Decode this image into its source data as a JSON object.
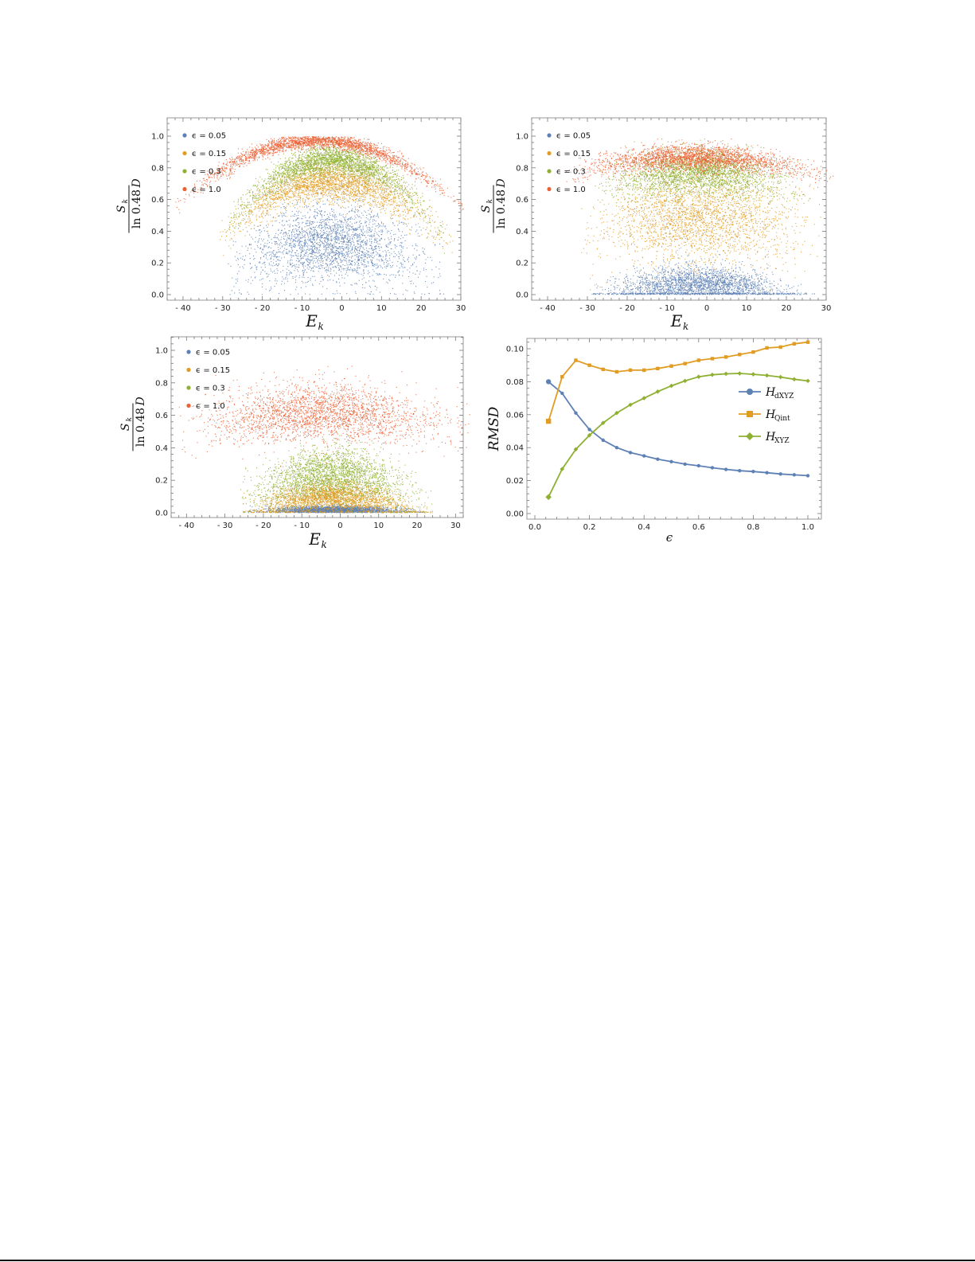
{
  "figure": {
    "panels_count": 4,
    "legend_scatter": [
      "ϵ = 0.05",
      "ϵ = 0.15",
      "ϵ = 0.3",
      "ϵ = 1.0"
    ],
    "legend_lines": [
      "H_dXYZ",
      "H_Qint",
      "H_XYZ"
    ],
    "colors": {
      "blue": "#5E81B5",
      "orange": "#E19C24",
      "green": "#8FB032",
      "red": "#EB6235"
    }
  },
  "chart_data": [
    {
      "id": "top-left",
      "type": "scatter",
      "title": "",
      "xlabel": "E_k",
      "ylabel": "S_k / ln 0.48D",
      "xlim": [
        -44,
        30
      ],
      "ylim": [
        -0.01,
        1.1
      ],
      "xticks": [
        -40,
        -30,
        -20,
        -10,
        0,
        10,
        20,
        30
      ],
      "xtick_labels": [
        "- 40",
        "- 30",
        "- 20",
        "- 10",
        "0",
        "10",
        "20",
        "30"
      ],
      "yticks": [
        0.0,
        0.2,
        0.4,
        0.6,
        0.8,
        1.0
      ],
      "ytick_labels": [
        "0.0",
        "0.2",
        "0.4",
        "0.6",
        "0.8",
        "1.0"
      ],
      "grid": false,
      "legend_position": "upper-left",
      "series": [
        {
          "name": "ϵ = 0.05",
          "color": "#5E81B5",
          "shape": "dome",
          "center_y": 0.33,
          "peak_y": 0.45,
          "spread_y": 0.12,
          "x_range": [
            -25,
            22
          ],
          "density": "dense-center"
        },
        {
          "name": "ϵ = 0.15",
          "color": "#E19C24",
          "shape": "arc",
          "center_y": 0.68,
          "peak_y": 0.75,
          "spread_y": 0.06,
          "x_range": [
            -27,
            24
          ],
          "density": "band"
        },
        {
          "name": "ϵ = 0.3",
          "color": "#8FB032",
          "shape": "arc",
          "center_y": 0.82,
          "peak_y": 0.88,
          "spread_y": 0.045,
          "x_range": [
            -25,
            22
          ],
          "density": "band"
        },
        {
          "name": "ϵ = 1.0",
          "color": "#EB6235",
          "shape": "arc",
          "center_y": 0.955,
          "peak_y": 0.99,
          "spread_y": 0.025,
          "x_range": [
            -38,
            28
          ],
          "density": "tight-band"
        }
      ]
    },
    {
      "id": "top-right",
      "type": "scatter",
      "title": "",
      "xlabel": "E_k",
      "ylabel": "S_k / ln 0.48D",
      "xlim": [
        -44,
        30
      ],
      "ylim": [
        -0.01,
        1.1
      ],
      "xticks": [
        -40,
        -30,
        -20,
        -10,
        0,
        10,
        20,
        30
      ],
      "xtick_labels": [
        "- 40",
        "- 30",
        "- 20",
        "- 10",
        "0",
        "10",
        "20",
        "30"
      ],
      "yticks": [
        0.0,
        0.2,
        0.4,
        0.6,
        0.8,
        1.0
      ],
      "ytick_labels": [
        "0.0",
        "0.2",
        "0.4",
        "0.6",
        "0.8",
        "1.0"
      ],
      "grid": false,
      "legend_position": "upper-left",
      "series": [
        {
          "name": "ϵ = 0.05",
          "color": "#5E81B5",
          "shape": "flat-band",
          "center_y": 0.07,
          "spread_y": 0.06,
          "x_range": [
            -25,
            23
          ]
        },
        {
          "name": "ϵ = 0.15",
          "color": "#E19C24",
          "shape": "broad-cloud",
          "center_y": 0.5,
          "spread_y": 0.14,
          "x_range": [
            -28,
            25
          ]
        },
        {
          "name": "ϵ = 0.3",
          "color": "#8FB032",
          "shape": "band",
          "center_y": 0.78,
          "spread_y": 0.07,
          "x_range": [
            -25,
            22
          ]
        },
        {
          "name": "ϵ = 1.0",
          "color": "#EB6235",
          "shape": "band",
          "center_y": 0.87,
          "spread_y": 0.04,
          "x_range": [
            -32,
            28
          ]
        }
      ]
    },
    {
      "id": "bottom-left",
      "type": "scatter",
      "title": "",
      "xlabel": "E_k",
      "ylabel": "S_k / ln 0.48D",
      "xlim": [
        -44,
        32
      ],
      "ylim": [
        -0.01,
        1.1
      ],
      "xticks": [
        -40,
        -30,
        -20,
        -10,
        0,
        10,
        20,
        30
      ],
      "xtick_labels": [
        "- 40",
        "- 30",
        "- 20",
        "- 10",
        "0",
        "10",
        "20",
        "30"
      ],
      "yticks": [
        0.0,
        0.2,
        0.4,
        0.6,
        0.8,
        1.0
      ],
      "ytick_labels": [
        "0.0",
        "0.2",
        "0.4",
        "0.6",
        "0.8",
        "1.0"
      ],
      "grid": false,
      "legend_position": "upper-left",
      "series": [
        {
          "name": "ϵ = 0.05",
          "color": "#5E81B5",
          "shape": "thin-floor",
          "center_y": 0.02,
          "spread_y": 0.012,
          "x_range": [
            -20,
            18
          ]
        },
        {
          "name": "ϵ = 0.15",
          "color": "#E19C24",
          "shape": "low-dome",
          "center_y": 0.1,
          "spread_y": 0.05,
          "x_range": [
            -22,
            20
          ]
        },
        {
          "name": "ϵ = 0.3",
          "color": "#8FB032",
          "shape": "dome",
          "center_y": 0.24,
          "spread_y": 0.08,
          "x_range": [
            -22,
            20
          ]
        },
        {
          "name": "ϵ = 1.0",
          "color": "#EB6235",
          "shape": "broad-band",
          "center_y": 0.62,
          "spread_y": 0.09,
          "x_range": [
            -38,
            30
          ]
        }
      ]
    },
    {
      "id": "bottom-right",
      "type": "line",
      "title": "",
      "xlabel": "ϵ",
      "ylabel": "RMSD",
      "xlim": [
        -0.02,
        1.03
      ],
      "ylim": [
        -0.001,
        0.11
      ],
      "xticks": [
        0.0,
        0.2,
        0.4,
        0.6,
        0.8,
        1.0
      ],
      "xtick_labels": [
        "0.0",
        "0.2",
        "0.4",
        "0.6",
        "0.8",
        "1.0"
      ],
      "yticks": [
        0.0,
        0.02,
        0.04,
        0.06,
        0.08,
        0.1
      ],
      "ytick_labels": [
        "0.00",
        "0.02",
        "0.04",
        "0.06",
        "0.08",
        "0.10"
      ],
      "grid": false,
      "legend_position": "center-right",
      "x": [
        0.05,
        0.1,
        0.15,
        0.2,
        0.25,
        0.3,
        0.35,
        0.4,
        0.45,
        0.5,
        0.55,
        0.6,
        0.65,
        0.7,
        0.75,
        0.8,
        0.85,
        0.9,
        0.95,
        1.0
      ],
      "series": [
        {
          "name": "H_dXYZ",
          "label_main": "H",
          "label_sub": "dXYZ",
          "color": "#5E81B5",
          "marker": "circle",
          "values": [
            0.08,
            0.073,
            0.061,
            0.051,
            0.0445,
            0.04,
            0.037,
            0.035,
            0.033,
            0.0315,
            0.03,
            0.029,
            0.0278,
            0.0268,
            0.026,
            0.0255,
            0.0248,
            0.024,
            0.0235,
            0.023
          ]
        },
        {
          "name": "H_Qint",
          "label_main": "H",
          "label_sub": "Qint",
          "color": "#E19C24",
          "marker": "square",
          "values": [
            0.056,
            0.083,
            0.093,
            0.09,
            0.0875,
            0.086,
            0.087,
            0.087,
            0.088,
            0.0895,
            0.091,
            0.093,
            0.094,
            0.095,
            0.0965,
            0.098,
            0.1005,
            0.101,
            0.103,
            0.104
          ]
        },
        {
          "name": "H_XYZ",
          "label_main": "H",
          "label_sub": "XYZ",
          "color": "#8FB032",
          "marker": "diamond",
          "values": [
            0.01,
            0.027,
            0.039,
            0.0475,
            0.055,
            0.061,
            0.066,
            0.07,
            0.074,
            0.0775,
            0.0805,
            0.083,
            0.0842,
            0.0848,
            0.085,
            0.0845,
            0.0838,
            0.0828,
            0.0815,
            0.0805
          ]
        }
      ]
    }
  ]
}
